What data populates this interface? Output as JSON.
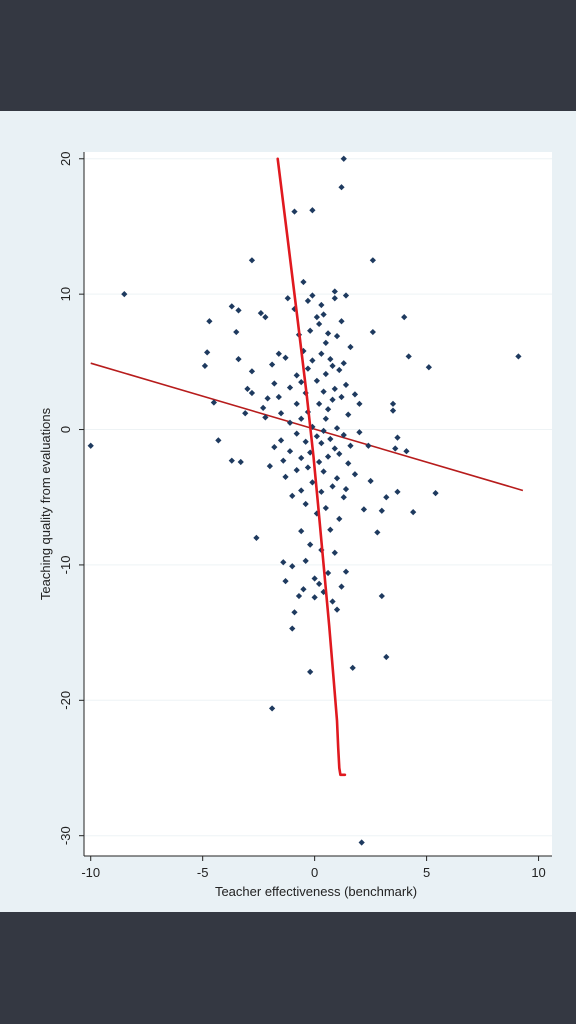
{
  "chart_data": {
    "type": "scatter",
    "title": "",
    "xlabel": "Teacher effectiveness (benchmark)",
    "ylabel": "Teaching quality from evaluations",
    "xlim": [
      -10.3,
      10.6
    ],
    "ylim": [
      -31.5,
      20.5
    ],
    "xticks": [
      -10,
      -5,
      0,
      5,
      10
    ],
    "yticks": [
      20,
      10,
      0,
      -10,
      -20,
      -30
    ],
    "grid": true,
    "legend": "none",
    "colors": {
      "points": "#1e3a5f",
      "fit_line": "#b71c1c",
      "curve": "#e0191f",
      "plot_background": "#ffffff",
      "panel_background": "#e9f1f5",
      "frame": "#343842"
    },
    "points": [
      [
        -10.0,
        -1.2
      ],
      [
        -8.5,
        10.0
      ],
      [
        -4.8,
        5.7
      ],
      [
        -4.9,
        4.7
      ],
      [
        -4.5,
        2.0
      ],
      [
        -4.3,
        -0.8
      ],
      [
        -4.7,
        8.0
      ],
      [
        -3.7,
        9.1
      ],
      [
        -3.4,
        8.8
      ],
      [
        -3.5,
        7.2
      ],
      [
        -3.4,
        5.2
      ],
      [
        -3.7,
        -2.3
      ],
      [
        -3.3,
        -2.4
      ],
      [
        -3.0,
        3.0
      ],
      [
        -3.1,
        1.2
      ],
      [
        -2.8,
        12.5
      ],
      [
        -2.8,
        4.3
      ],
      [
        -2.8,
        2.7
      ],
      [
        -2.6,
        -8.0
      ],
      [
        -2.4,
        8.6
      ],
      [
        -2.2,
        8.3
      ],
      [
        -2.3,
        1.6
      ],
      [
        -2.2,
        0.9
      ],
      [
        -2.0,
        -2.7
      ],
      [
        -2.1,
        2.3
      ],
      [
        -1.9,
        4.8
      ],
      [
        -1.8,
        3.4
      ],
      [
        -1.8,
        -1.3
      ],
      [
        -1.9,
        -20.6
      ],
      [
        -1.6,
        5.6
      ],
      [
        -1.6,
        2.4
      ],
      [
        -1.5,
        1.2
      ],
      [
        -1.5,
        -0.8
      ],
      [
        -1.4,
        -2.3
      ],
      [
        -1.4,
        -9.8
      ],
      [
        -1.3,
        5.3
      ],
      [
        -1.3,
        -3.5
      ],
      [
        -1.3,
        -11.2
      ],
      [
        -1.2,
        9.7
      ],
      [
        -1.1,
        3.1
      ],
      [
        -1.1,
        0.5
      ],
      [
        -1.1,
        -1.6
      ],
      [
        -1.0,
        -4.9
      ],
      [
        -1.0,
        -10.1
      ],
      [
        -1.0,
        -14.7
      ],
      [
        -0.9,
        8.9
      ],
      [
        -0.9,
        16.1
      ],
      [
        -0.9,
        -13.5
      ],
      [
        -0.8,
        4.0
      ],
      [
        -0.8,
        1.9
      ],
      [
        -0.8,
        -0.3
      ],
      [
        -0.8,
        -3.0
      ],
      [
        -0.7,
        -12.3
      ],
      [
        -0.7,
        7.0
      ],
      [
        -0.6,
        3.5
      ],
      [
        -0.6,
        0.8
      ],
      [
        -0.6,
        -2.1
      ],
      [
        -0.6,
        -4.5
      ],
      [
        -0.6,
        -7.5
      ],
      [
        -0.5,
        10.9
      ],
      [
        -0.5,
        5.8
      ],
      [
        -0.5,
        -11.8
      ],
      [
        -0.4,
        2.7
      ],
      [
        -0.4,
        -0.9
      ],
      [
        -0.4,
        -5.5
      ],
      [
        -0.4,
        -9.7
      ],
      [
        -0.3,
        9.5
      ],
      [
        -0.3,
        4.5
      ],
      [
        -0.3,
        1.3
      ],
      [
        -0.3,
        -2.8
      ],
      [
        -0.2,
        7.3
      ],
      [
        -0.2,
        -1.7
      ],
      [
        -0.2,
        -8.5
      ],
      [
        -0.2,
        -17.9
      ],
      [
        -0.1,
        16.2
      ],
      [
        -0.1,
        9.9
      ],
      [
        -0.1,
        5.1
      ],
      [
        -0.1,
        0.2
      ],
      [
        -0.1,
        -3.9
      ],
      [
        0.0,
        -11.0
      ],
      [
        0.0,
        -12.4
      ],
      [
        0.1,
        8.3
      ],
      [
        0.1,
        3.6
      ],
      [
        0.1,
        -0.5
      ],
      [
        0.1,
        -6.2
      ],
      [
        0.2,
        7.8
      ],
      [
        0.2,
        1.9
      ],
      [
        0.2,
        -2.4
      ],
      [
        0.2,
        -11.4
      ],
      [
        0.3,
        9.2
      ],
      [
        0.3,
        5.6
      ],
      [
        0.3,
        -1.0
      ],
      [
        0.3,
        -4.6
      ],
      [
        0.3,
        -8.9
      ],
      [
        0.4,
        8.5
      ],
      [
        0.4,
        2.8
      ],
      [
        0.4,
        -0.1
      ],
      [
        0.4,
        -3.1
      ],
      [
        0.4,
        -12.0
      ],
      [
        0.5,
        6.4
      ],
      [
        0.5,
        4.1
      ],
      [
        0.5,
        0.8
      ],
      [
        0.5,
        -5.8
      ],
      [
        0.6,
        7.1
      ],
      [
        0.6,
        1.5
      ],
      [
        0.6,
        -2.0
      ],
      [
        0.6,
        -10.6
      ],
      [
        0.7,
        5.2
      ],
      [
        0.7,
        -0.7
      ],
      [
        0.7,
        -7.4
      ],
      [
        0.8,
        4.7
      ],
      [
        0.8,
        2.2
      ],
      [
        0.8,
        -4.2
      ],
      [
        0.8,
        -12.7
      ],
      [
        0.9,
        10.2
      ],
      [
        0.9,
        9.7
      ],
      [
        0.9,
        3.0
      ],
      [
        0.9,
        -1.4
      ],
      [
        0.9,
        -9.1
      ],
      [
        1.0,
        6.9
      ],
      [
        1.0,
        0.1
      ],
      [
        1.0,
        -3.6
      ],
      [
        1.0,
        -13.3
      ],
      [
        1.1,
        4.4
      ],
      [
        1.1,
        -1.8
      ],
      [
        1.1,
        -6.6
      ],
      [
        1.2,
        17.9
      ],
      [
        1.2,
        8.0
      ],
      [
        1.2,
        2.4
      ],
      [
        1.2,
        -11.6
      ],
      [
        1.3,
        20.0
      ],
      [
        1.3,
        4.9
      ],
      [
        1.3,
        -0.4
      ],
      [
        1.3,
        -5.0
      ],
      [
        1.4,
        9.9
      ],
      [
        1.4,
        3.3
      ],
      [
        1.4,
        -4.4
      ],
      [
        1.4,
        -10.5
      ],
      [
        1.5,
        1.1
      ],
      [
        1.5,
        -2.5
      ],
      [
        1.6,
        6.1
      ],
      [
        1.6,
        -1.2
      ],
      [
        1.7,
        -17.6
      ],
      [
        1.8,
        2.6
      ],
      [
        1.8,
        -3.3
      ],
      [
        2.0,
        1.9
      ],
      [
        2.0,
        -0.2
      ],
      [
        2.1,
        -30.5
      ],
      [
        2.2,
        -5.9
      ],
      [
        2.4,
        -1.2
      ],
      [
        2.5,
        -3.8
      ],
      [
        2.6,
        7.2
      ],
      [
        2.6,
        12.5
      ],
      [
        2.8,
        -7.6
      ],
      [
        3.0,
        -12.3
      ],
      [
        3.0,
        -6.0
      ],
      [
        3.2,
        -5.0
      ],
      [
        3.2,
        -16.8
      ],
      [
        3.5,
        1.9
      ],
      [
        3.5,
        1.4
      ],
      [
        3.6,
        -1.4
      ],
      [
        3.7,
        -0.6
      ],
      [
        3.7,
        -4.6
      ],
      [
        4.0,
        8.3
      ],
      [
        4.1,
        -1.6
      ],
      [
        4.2,
        5.4
      ],
      [
        4.4,
        -6.1
      ],
      [
        5.1,
        4.6
      ],
      [
        5.4,
        -4.7
      ],
      [
        9.1,
        5.4
      ]
    ],
    "fit_line": {
      "x": [
        -10.0,
        9.3
      ],
      "y": [
        4.9,
        -4.5
      ]
    },
    "curve": {
      "x": [
        -1.65,
        -1.2,
        -0.75,
        -0.35,
        -0.05,
        0.15,
        0.4,
        0.65,
        0.85,
        1.0,
        1.05,
        1.1,
        1.15,
        1.35
      ],
      "y": [
        20.0,
        14.0,
        8.0,
        2.5,
        -2.0,
        -5.5,
        -10.0,
        -14.5,
        -18.5,
        -21.5,
        -23.5,
        -25.0,
        -25.5,
        -25.5
      ]
    }
  }
}
